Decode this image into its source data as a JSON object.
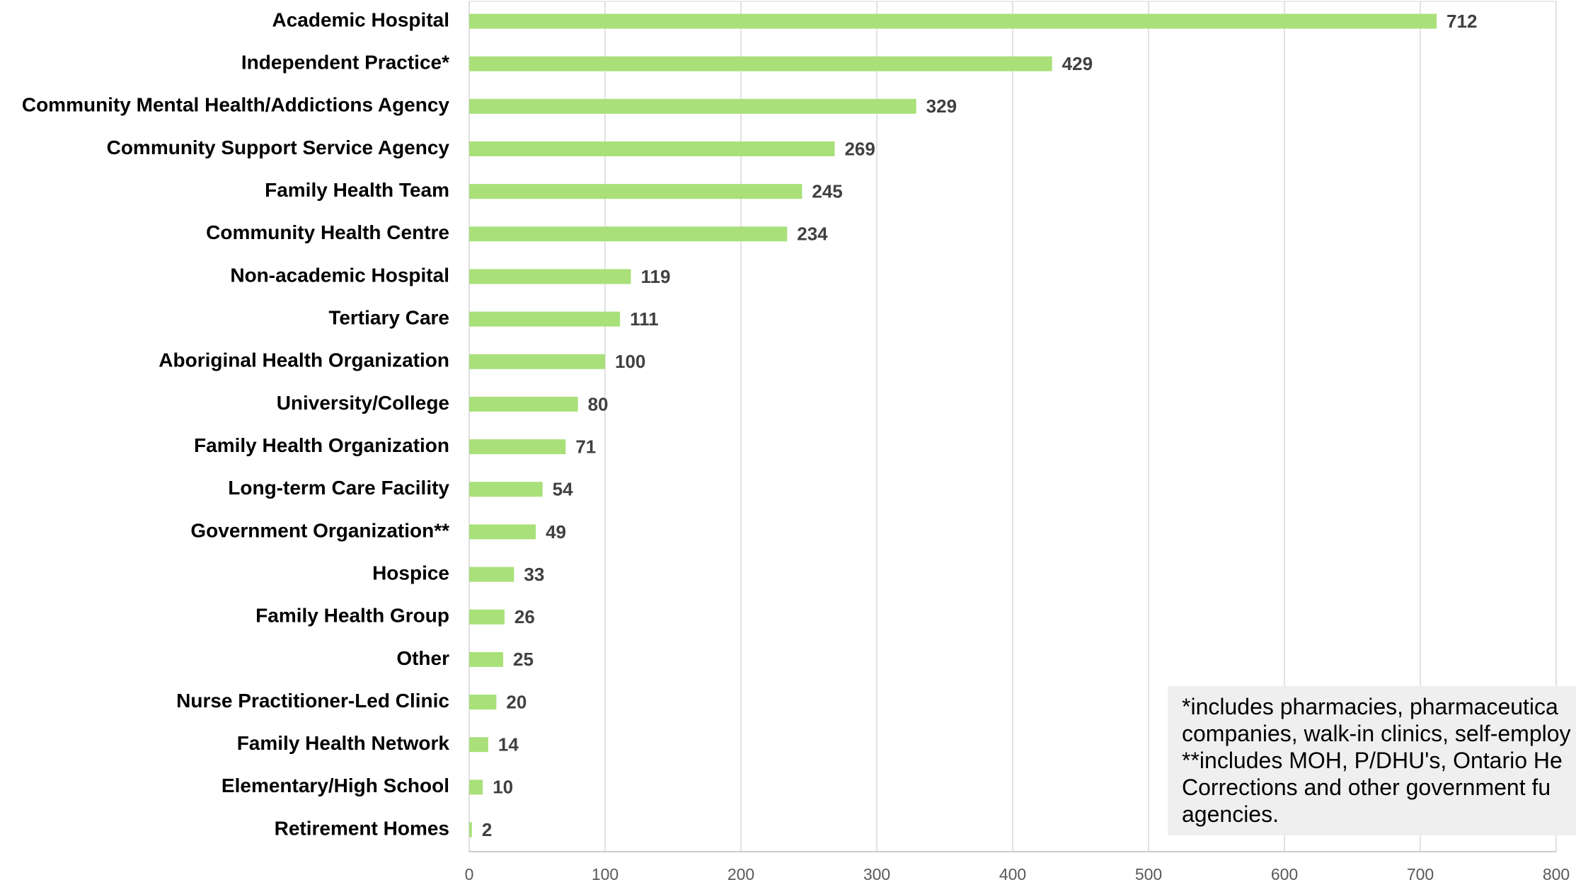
{
  "chart_data": {
    "type": "bar",
    "orientation": "horizontal",
    "categories": [
      "Academic Hospital",
      "Independent Practice*",
      "Community Mental Health/Addictions Agency",
      "Community Support Service Agency",
      "Family Health Team",
      "Community Health Centre",
      "Non-academic Hospital",
      "Tertiary Care",
      "Aboriginal Health Organization",
      "University/College",
      "Family Health Organization",
      "Long-term Care Facility",
      "Government Organization**",
      "Hospice",
      "Family Health Group",
      "Other",
      "Nurse Practitioner-Led Clinic",
      "Family Health Network",
      "Elementary/High School",
      "Retirement Homes"
    ],
    "values": [
      712,
      429,
      329,
      269,
      245,
      234,
      119,
      111,
      100,
      80,
      71,
      54,
      49,
      33,
      26,
      25,
      20,
      14,
      10,
      2
    ],
    "color": "#a9e07a",
    "xlim": [
      0,
      800
    ],
    "xticks": [
      0,
      100,
      200,
      300,
      400,
      500,
      600,
      700,
      800
    ],
    "grid": true,
    "annotation": [
      "*includes pharmacies, pharmaceutica",
      "companies, walk-in clinics, self-employ",
      "**includes MOH, P/DHU's, Ontario He",
      "Corrections and other government fu",
      "agencies."
    ]
  }
}
